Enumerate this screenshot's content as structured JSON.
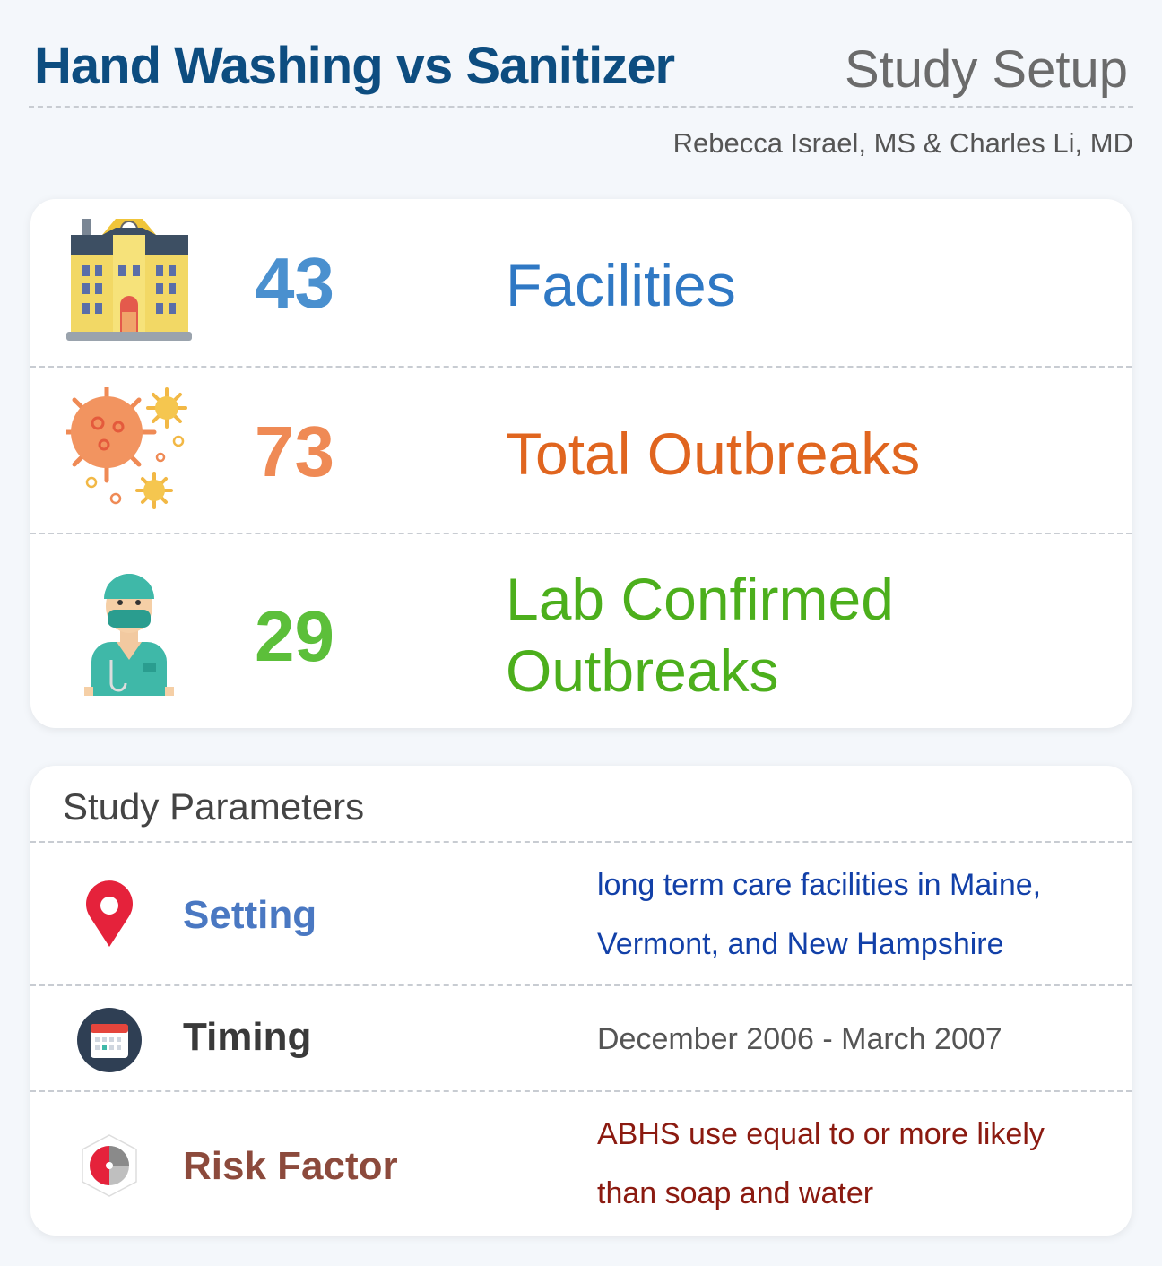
{
  "header": {
    "title": "Hand Washing vs Sanitizer",
    "section": "Study Setup",
    "authors": "Rebecca Israel, MS & Charles Li, MD"
  },
  "stats": [
    {
      "value": "43",
      "label": "Facilities",
      "icon": "school-building-icon",
      "color": "#4a90cf",
      "label_color": "#2f78c4"
    },
    {
      "value": "73",
      "label": "Total Outbreaks",
      "icon": "virus-icon",
      "color": "#ef8a55",
      "label_color": "#e0651f"
    },
    {
      "value": "29",
      "label": "Lab Confirmed Outbreaks",
      "icon": "doctor-icon",
      "color": "#5cbf3a",
      "label_color": "#4caf1c"
    }
  ],
  "parameters": {
    "title": "Study Parameters",
    "rows": [
      {
        "name": "Setting",
        "value": "long term care facilities in Maine, Vermont, and New Hampshire",
        "icon": "location-pin-icon",
        "name_color": "#4a78c2",
        "value_color": "#1240a8"
      },
      {
        "name": "Timing",
        "value": "December 2006 - March 2007",
        "icon": "calendar-icon",
        "name_color": "#3a3a3a",
        "value_color": "#555555"
      },
      {
        "name": "Risk Factor",
        "value": "ABHS use equal to or more likely than soap and water",
        "icon": "risk-chart-icon",
        "name_color": "#8c4a3c",
        "value_color": "#8b1a10"
      }
    ]
  }
}
